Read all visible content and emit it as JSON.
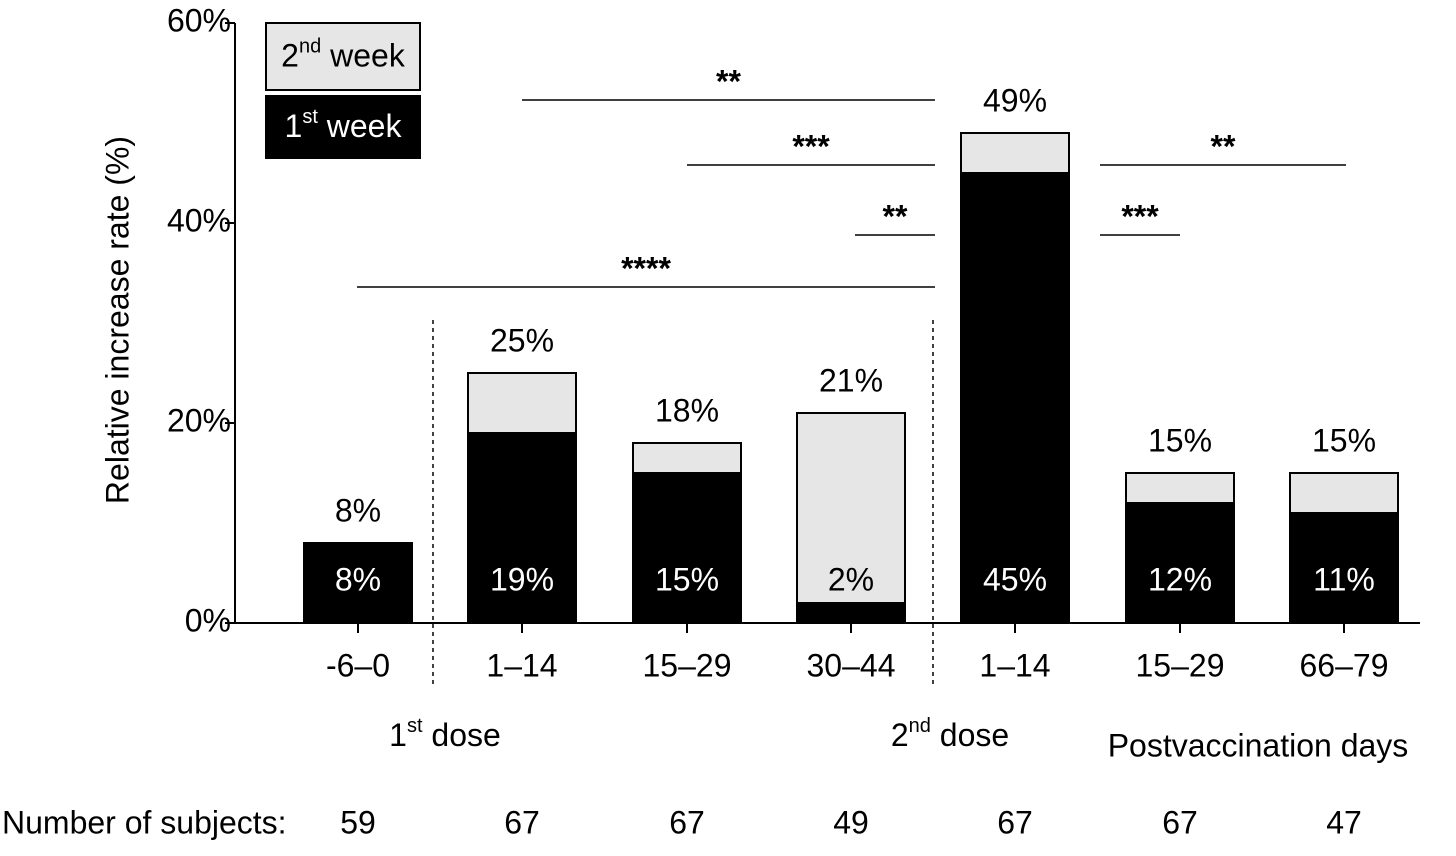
{
  "chart_data": {
    "type": "stacked_bar",
    "y_label": "Relative increase rate  (%)",
    "categories": [
      "-6–0",
      "1–14",
      "15–29",
      "30–44",
      "1–14",
      "15–29",
      "66–79"
    ],
    "series": [
      {
        "name": "1st week",
        "color": "#000000",
        "values": [
          8,
          19,
          15,
          2,
          45,
          12,
          11
        ],
        "value_labels": [
          "8%",
          "19%",
          "15%",
          "2%",
          "45%",
          "12%",
          "11%"
        ]
      },
      {
        "name": "2nd week",
        "color": "#e6e6e6",
        "values": [
          0,
          6,
          3,
          19,
          4,
          3,
          4
        ]
      }
    ],
    "totals": [
      8,
      25,
      18,
      21,
      49,
      15,
      15
    ],
    "total_labels": [
      "8%",
      "25%",
      "18%",
      "21%",
      "49%",
      "15%",
      "15%"
    ],
    "ylim": [
      0,
      60
    ],
    "yticks": [
      {
        "value": 0,
        "label": "0%"
      },
      {
        "value": 20,
        "label": "20%"
      },
      {
        "value": 40,
        "label": "40%"
      },
      {
        "value": 60,
        "label": "60%"
      }
    ],
    "groups": [
      "1st dose",
      "2nd dose",
      "Postvaccination days"
    ],
    "annotations": [
      "**",
      "***",
      "**",
      "****",
      "**",
      "***"
    ],
    "subjects_label": "Number of subjects:",
    "subjects": [
      59,
      67,
      67,
      49,
      67,
      67,
      47
    ],
    "legend": "top-left"
  }
}
